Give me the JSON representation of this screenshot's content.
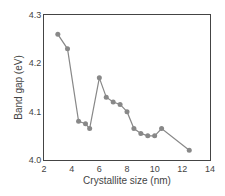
{
  "chart_data": {
    "type": "line",
    "x": [
      3.0,
      3.7,
      4.5,
      5.0,
      5.3,
      6.0,
      6.5,
      7.0,
      7.5,
      8.0,
      8.5,
      9.0,
      9.5,
      10.0,
      10.5,
      12.5
    ],
    "values": [
      4.26,
      4.23,
      4.08,
      4.075,
      4.065,
      4.17,
      4.13,
      4.12,
      4.115,
      4.1,
      4.065,
      4.055,
      4.05,
      4.05,
      4.065,
      4.02
    ],
    "xlim": [
      2,
      14
    ],
    "ylim": [
      4.0,
      4.3
    ],
    "xticks": [
      2,
      4,
      6,
      8,
      10,
      12,
      14
    ],
    "yticks": [
      {
        "value": 4.0,
        "label": "4.0"
      },
      4.1,
      4.2,
      4.3
    ],
    "xlabel": "Crystallite size (nm)",
    "ylabel": "Band gap (eV)",
    "color": "#888888",
    "marker": "circle",
    "grid": false
  }
}
